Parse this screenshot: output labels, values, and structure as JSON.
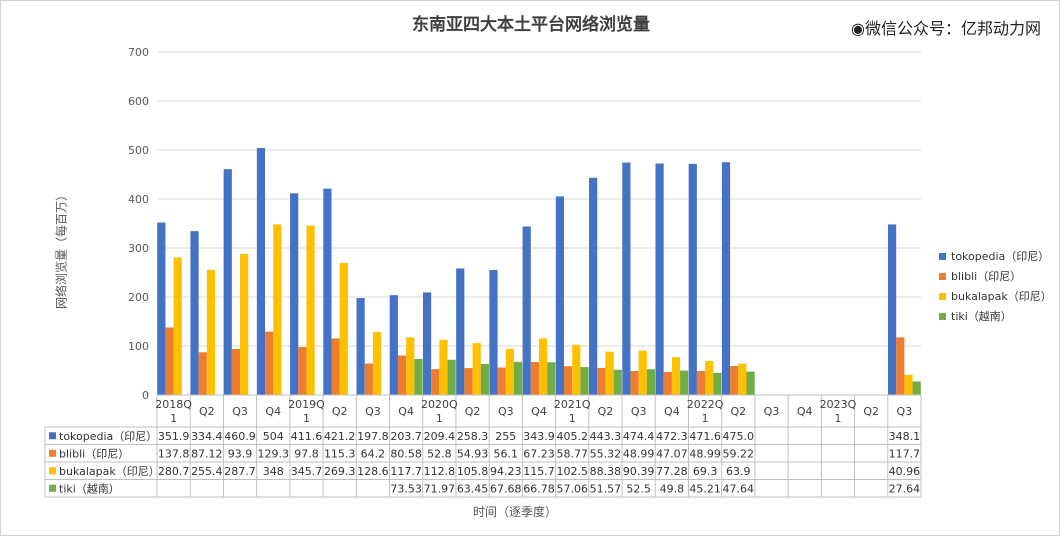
{
  "header": {
    "title": "东南亚四大本土平台网络浏览量",
    "watermark": "◉微信公众号：亿邦动力网"
  },
  "colors": {
    "tokopedia": "#4472c4",
    "blibli": "#ed7d31",
    "bukalapak": "#ffc000",
    "tiki": "#70ad47",
    "grid": "#d9d9d9",
    "table_border": "#bfbfbf"
  },
  "chart_data": {
    "type": "bar",
    "title": "东南亚四大本土平台网络浏览量",
    "xlabel": "时间（逐季度）",
    "ylabel": "网络浏览量（每百万）",
    "ylim": [
      0,
      700
    ],
    "yticks": [
      0,
      100,
      200,
      300,
      400,
      500,
      600,
      700
    ],
    "grid": true,
    "legend_position": "right",
    "categories": [
      "2018Q\n1",
      "Q2",
      "Q3",
      "Q4",
      "2019Q\n1",
      "Q2",
      "Q3",
      "Q4",
      "2020Q\n1",
      "Q2",
      "Q3",
      "Q4",
      "2021Q\n1",
      "Q2",
      "Q3",
      "Q4",
      "2022Q\n1",
      "Q2",
      "Q3",
      "Q4",
      "2023Q\n1",
      "Q2",
      "Q3"
    ],
    "series": [
      {
        "name": "tokopedia（印尼）",
        "values": [
          351.9,
          334.4,
          460.9,
          504,
          411.6,
          421.2,
          197.8,
          203.7,
          209.4,
          258.3,
          255,
          343.9,
          405.2,
          443.3,
          474.4,
          472.3,
          471.6,
          475.0,
          null,
          null,
          null,
          null,
          348.1
        ],
        "labels": [
          "351.9",
          "334.4",
          "460.9",
          "504",
          "411.6",
          "421.2",
          "197.8",
          "203.7",
          "209.4",
          "258.3",
          "255",
          "343.9",
          "405.2",
          "443.3",
          "474.4",
          "472.3",
          "471.6",
          "475.0",
          "",
          "",
          "",
          "",
          "348.1"
        ]
      },
      {
        "name": "blibli（印尼）",
        "values": [
          137.8,
          87.12,
          93.9,
          129.3,
          97.8,
          115.3,
          64.2,
          80.58,
          52.8,
          54.93,
          56.1,
          67.23,
          58.77,
          55.32,
          48.99,
          47.07,
          48.99,
          59.22,
          null,
          null,
          null,
          null,
          117.7
        ],
        "labels": [
          "137.8",
          "87.12",
          "93.9",
          "129.3",
          "97.8",
          "115.3",
          "64.2",
          "80.58",
          "52.8",
          "54.93",
          "56.1",
          "67.23",
          "58.77",
          "55.32",
          "48.99",
          "47.07",
          "48.99",
          "59.22",
          "",
          "",
          "",
          "",
          "117.7"
        ]
      },
      {
        "name": "bukalapak（印尼）",
        "values": [
          280.7,
          255.4,
          287.7,
          348,
          345.7,
          269.3,
          128.6,
          117.7,
          112.8,
          105.8,
          94.23,
          115.7,
          102.5,
          88.38,
          90.39,
          77.28,
          69.3,
          63.9,
          null,
          null,
          null,
          null,
          40.96
        ],
        "labels": [
          "280.7",
          "255.4",
          "287.7",
          "348",
          "345.7",
          "269.3",
          "128.6",
          "117.7",
          "112.8",
          "105.8",
          "94.23",
          "115.7",
          "102.5",
          "88.38",
          "90.39",
          "77.28",
          "69.3",
          "63.9",
          "",
          "",
          "",
          "",
          "40.96"
        ]
      },
      {
        "name": "tiki（越南）",
        "values": [
          null,
          null,
          null,
          null,
          null,
          null,
          null,
          73.53,
          71.97,
          63.45,
          67.68,
          66.78,
          57.06,
          51.57,
          52.5,
          49.8,
          45.21,
          47.64,
          null,
          null,
          null,
          null,
          27.64
        ],
        "labels": [
          "",
          "",
          "",
          "",
          "",
          "",
          "",
          "73.53",
          "71.97",
          "63.45",
          "67.68",
          "66.78",
          "57.06",
          "51.57",
          "52.5",
          "49.8",
          "45.21",
          "47.64",
          "",
          "",
          "",
          "",
          "27.64"
        ]
      }
    ]
  }
}
